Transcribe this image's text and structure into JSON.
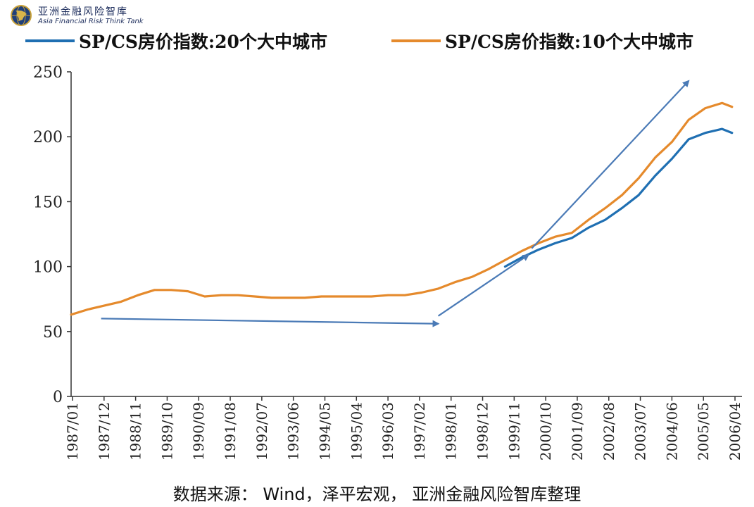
{
  "header": {
    "logo_cn": "亚洲金融风险智库",
    "logo_en": "Asia Financial Risk Think Tank"
  },
  "source": "数据来源： Wind，泽平宏观， 亚洲金融风险智库整理",
  "colors": {
    "series_20": "#1f6fb2",
    "series_10": "#e58a2c",
    "arrow": "#4a7ab6",
    "axis": "#333333"
  },
  "chart_data": {
    "type": "line",
    "ylim": [
      0,
      250
    ],
    "yticks": [
      0,
      50,
      100,
      150,
      200,
      250
    ],
    "xlim": [
      1987.0,
      2007.1
    ],
    "xtick_labels": [
      "1987/01",
      "1987/12",
      "1988/11",
      "1989/10",
      "1990/09",
      "1991/08",
      "1992/07",
      "1993/06",
      "1994/05",
      "1995/04",
      "1996/03",
      "1997/02",
      "1998/01",
      "1998/12",
      "1999/11",
      "2000/10",
      "2001/09",
      "2002/08",
      "2003/07",
      "2004/06",
      "2005/05",
      "2006/04"
    ],
    "legend_position": "top",
    "series": [
      {
        "name": "SP/CS房价指数:20个大中城市",
        "x": [
          2000.0,
          2000.5,
          2001.0,
          2001.5,
          2002.0,
          2002.5,
          2003.0,
          2003.5,
          2004.0,
          2004.5,
          2005.0,
          2005.5,
          2006.0,
          2006.5,
          2006.8
        ],
        "values": [
          100,
          107,
          113,
          118,
          122,
          130,
          136,
          145,
          155,
          170,
          183,
          198,
          203,
          206,
          203
        ]
      },
      {
        "name": "SP/CS房价指数:10个大中城市",
        "x": [
          1987.0,
          1987.5,
          1988.0,
          1988.5,
          1989.0,
          1989.5,
          1990.0,
          1990.5,
          1991.0,
          1991.5,
          1992.0,
          1992.5,
          1993.0,
          1993.5,
          1994.0,
          1994.5,
          1995.0,
          1995.5,
          1996.0,
          1996.5,
          1997.0,
          1997.5,
          1998.0,
          1998.5,
          1999.0,
          1999.5,
          2000.0,
          2000.5,
          2001.0,
          2001.5,
          2002.0,
          2002.5,
          2003.0,
          2003.5,
          2004.0,
          2004.5,
          2005.0,
          2005.5,
          2006.0,
          2006.5,
          2006.8
        ],
        "values": [
          63,
          67,
          70,
          73,
          78,
          82,
          82,
          81,
          77,
          78,
          78,
          77,
          76,
          76,
          76,
          77,
          77,
          77,
          77,
          78,
          78,
          80,
          83,
          88,
          92,
          98,
          105,
          112,
          118,
          123,
          126,
          136,
          145,
          155,
          168,
          184,
          196,
          213,
          222,
          226,
          223
        ]
      }
    ],
    "annotations": [
      {
        "type": "arrow",
        "x1": 1987.9,
        "y1": 60,
        "x2": 1998.0,
        "y2": 56
      },
      {
        "type": "arrow",
        "x1": 1998.0,
        "y1": 62,
        "x2": 2000.7,
        "y2": 109
      },
      {
        "type": "arrow",
        "x1": 2000.8,
        "y1": 114,
        "x2": 2005.5,
        "y2": 243
      }
    ]
  }
}
